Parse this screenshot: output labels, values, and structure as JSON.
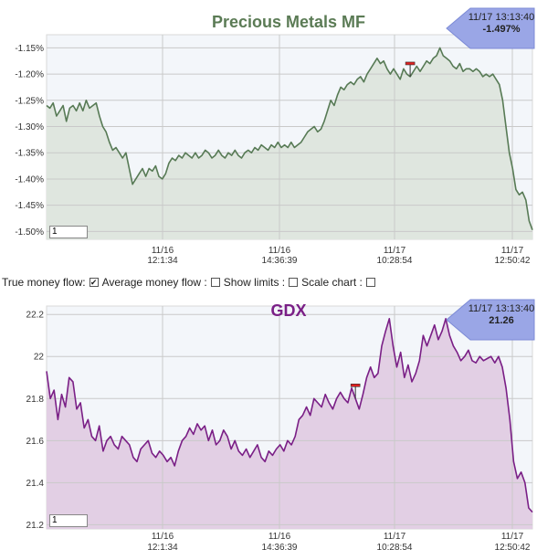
{
  "controls": {
    "true_money_flow_label": "True money flow:",
    "average_money_flow_label": "Average money flow :",
    "show_limits_label": "Show limits :",
    "scale_chart_label": "Scale chart :",
    "true_money_flow_checked": true,
    "average_money_flow_checked": false,
    "show_limits_checked": false,
    "scale_chart_checked": false
  },
  "charts": [
    {
      "id": "precious-metals",
      "badge_time": "11/17 13:13:40",
      "badge_value": "-1.497%",
      "input_value": "1",
      "colors": {
        "title": "#5b7b55",
        "line": "#577a55",
        "fill": "#dfe6df",
        "badge": "#9aa6e6"
      }
    },
    {
      "id": "gdx",
      "badge_time": "11/17 13:13:40",
      "badge_value": "21.26",
      "input_value": "1",
      "colors": {
        "title": "#7a1f86",
        "line": "#7a1f86",
        "fill": "#e2cfe4",
        "badge": "#9aa6e6"
      }
    }
  ],
  "chart_data": [
    {
      "type": "area",
      "title": "Precious Metals MF",
      "xlabel": "",
      "ylabel": "",
      "ylim": [
        -1.515,
        -1.125
      ],
      "yticks": [
        -1.15,
        -1.2,
        -1.25,
        -1.3,
        -1.35,
        -1.4,
        -1.45,
        -1.5
      ],
      "ytick_labels": [
        "-1.15%",
        "-1.20%",
        "-1.25%",
        "-1.30%",
        "-1.35%",
        "-1.40%",
        "-1.45%",
        "-1.50%"
      ],
      "xtick_labels": [
        {
          "date": "11/16",
          "time": "12:1:34"
        },
        {
          "date": "11/16",
          "time": "14:36:39"
        },
        {
          "date": "11/17",
          "time": "10:28:54"
        },
        {
          "date": "11/17",
          "time": "12:50:42"
        }
      ],
      "grid": true,
      "series": [
        {
          "values": [
            -1.26,
            -1.265,
            -1.255,
            -1.28,
            -1.27,
            -1.26,
            -1.29,
            -1.265,
            -1.26,
            -1.27,
            -1.255,
            -1.27,
            -1.25,
            -1.265,
            -1.26,
            -1.255,
            -1.28,
            -1.3,
            -1.31,
            -1.33,
            -1.345,
            -1.34,
            -1.35,
            -1.36,
            -1.35,
            -1.38,
            -1.41,
            -1.4,
            -1.39,
            -1.38,
            -1.395,
            -1.38,
            -1.385,
            -1.375,
            -1.395,
            -1.4,
            -1.39,
            -1.37,
            -1.36,
            -1.365,
            -1.355,
            -1.36,
            -1.35,
            -1.355,
            -1.36,
            -1.35,
            -1.36,
            -1.355,
            -1.345,
            -1.35,
            -1.36,
            -1.355,
            -1.345,
            -1.355,
            -1.36,
            -1.35,
            -1.355,
            -1.345,
            -1.355,
            -1.36,
            -1.35,
            -1.345,
            -1.35,
            -1.34,
            -1.345,
            -1.335,
            -1.34,
            -1.345,
            -1.335,
            -1.34,
            -1.33,
            -1.34,
            -1.335,
            -1.34,
            -1.33,
            -1.34,
            -1.335,
            -1.33,
            -1.32,
            -1.31,
            -1.305,
            -1.3,
            -1.31,
            -1.305,
            -1.29,
            -1.27,
            -1.25,
            -1.26,
            -1.24,
            -1.225,
            -1.23,
            -1.22,
            -1.215,
            -1.22,
            -1.21,
            -1.205,
            -1.215,
            -1.2,
            -1.19,
            -1.18,
            -1.17,
            -1.18,
            -1.175,
            -1.19,
            -1.2,
            -1.19,
            -1.2,
            -1.21,
            -1.19,
            -1.2,
            -1.205,
            -1.195,
            -1.185,
            -1.195,
            -1.185,
            -1.175,
            -1.18,
            -1.17,
            -1.165,
            -1.15,
            -1.165,
            -1.17,
            -1.175,
            -1.185,
            -1.19,
            -1.18,
            -1.195,
            -1.19,
            -1.19,
            -1.195,
            -1.19,
            -1.195,
            -1.205,
            -1.2,
            -1.205,
            -1.2,
            -1.21,
            -1.22,
            -1.25,
            -1.3,
            -1.35,
            -1.38,
            -1.42,
            -1.43,
            -1.425,
            -1.44,
            -1.48,
            -1.497
          ]
        }
      ],
      "marker_index": 110
    },
    {
      "type": "area",
      "title": "GDX",
      "xlabel": "",
      "ylabel": "",
      "ylim": [
        21.18,
        22.24
      ],
      "yticks": [
        22.2,
        22.0,
        21.8,
        21.6,
        21.4,
        21.2
      ],
      "ytick_labels": [
        "22.2",
        "22",
        "21.8",
        "21.6",
        "21.4",
        "21.2"
      ],
      "xtick_labels": [
        {
          "date": "11/16",
          "time": "12:1:34"
        },
        {
          "date": "11/16",
          "time": "14:36:39"
        },
        {
          "date": "11/17",
          "time": "10:28:54"
        },
        {
          "date": "11/17",
          "time": "12:50:42"
        }
      ],
      "grid": true,
      "series": [
        {
          "values": [
            21.93,
            21.8,
            21.84,
            21.7,
            21.82,
            21.76,
            21.9,
            21.88,
            21.75,
            21.78,
            21.66,
            21.7,
            21.62,
            21.6,
            21.67,
            21.55,
            21.6,
            21.62,
            21.58,
            21.56,
            21.62,
            21.6,
            21.58,
            21.52,
            21.5,
            21.56,
            21.58,
            21.6,
            21.54,
            21.52,
            21.55,
            21.53,
            21.5,
            21.52,
            21.48,
            21.55,
            21.6,
            21.62,
            21.66,
            21.63,
            21.68,
            21.65,
            21.67,
            21.6,
            21.65,
            21.58,
            21.6,
            21.65,
            21.62,
            21.56,
            21.6,
            21.55,
            21.53,
            21.56,
            21.52,
            21.55,
            21.58,
            21.52,
            21.5,
            21.55,
            21.53,
            21.56,
            21.58,
            21.55,
            21.6,
            21.58,
            21.62,
            21.7,
            21.72,
            21.76,
            21.72,
            21.8,
            21.78,
            21.76,
            21.82,
            21.78,
            21.75,
            21.8,
            21.83,
            21.8,
            21.78,
            21.85,
            21.8,
            21.75,
            21.82,
            21.9,
            21.95,
            21.9,
            21.92,
            22.05,
            22.12,
            22.18,
            22.05,
            21.95,
            22.02,
            21.9,
            21.96,
            21.88,
            21.92,
            21.98,
            22.1,
            22.05,
            22.1,
            22.15,
            22.08,
            22.12,
            22.18,
            22.1,
            22.05,
            22.02,
            21.98,
            22.0,
            22.03,
            21.98,
            21.97,
            22.0,
            21.98,
            21.99,
            22.0,
            21.97,
            22.0,
            21.95,
            21.85,
            21.7,
            21.5,
            21.42,
            21.45,
            21.4,
            21.28,
            21.26
          ]
        }
      ],
      "marker_index": 82
    }
  ]
}
